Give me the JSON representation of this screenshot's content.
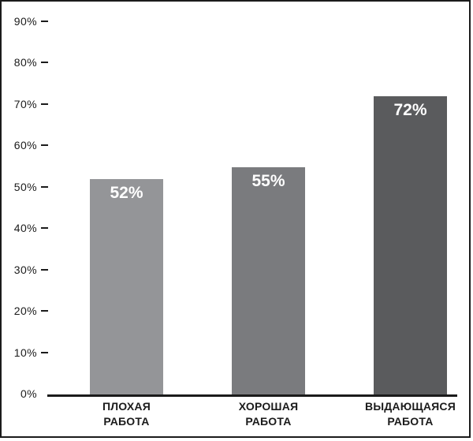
{
  "chart_data": {
    "type": "bar",
    "title": "",
    "xlabel": "",
    "ylabel": "",
    "categories": [
      "ПЛОХАЯ РАБОТА",
      "ХОРОШАЯ РАБОТА",
      "ВЫДАЮЩАЯСЯ РАБОТА"
    ],
    "values": [
      52,
      55,
      72
    ],
    "ylim": [
      0,
      95
    ],
    "grid": false,
    "legend": false,
    "y_ticks": [
      {
        "pct": 90,
        "label": "90%"
      },
      {
        "pct": 80,
        "label": "80%"
      },
      {
        "pct": 70,
        "label": "70%"
      },
      {
        "pct": 60,
        "label": "60%"
      },
      {
        "pct": 50,
        "label": "50%"
      },
      {
        "pct": 40,
        "label": "40%"
      },
      {
        "pct": 30,
        "label": "30%"
      },
      {
        "pct": 20,
        "label": "20%"
      },
      {
        "pct": 10,
        "label": "10%"
      },
      {
        "pct": 0,
        "label": "0%"
      }
    ],
    "bars": [
      {
        "value": 52,
        "value_label": "52%",
        "category_lines": [
          "ПЛОХАЯ",
          "РАБОТА"
        ],
        "color": "#949598"
      },
      {
        "value": 55,
        "value_label": "55%",
        "category_lines": [
          "ХОРОШАЯ",
          "РАБОТА"
        ],
        "color": "#7a7b7e"
      },
      {
        "value": 72,
        "value_label": "72%",
        "category_lines": [
          "ВЫДАЮЩАЯСЯ",
          "РАБОТА"
        ],
        "color": "#5a5b5d"
      }
    ],
    "colors": {
      "frame": "#1b1b1b",
      "axis_line": "#1b1b1b",
      "tick_text": "#1b1b1b",
      "category_text": "#1b1b1b",
      "value_text": "#ffffff",
      "background": "#ffffff"
    }
  }
}
